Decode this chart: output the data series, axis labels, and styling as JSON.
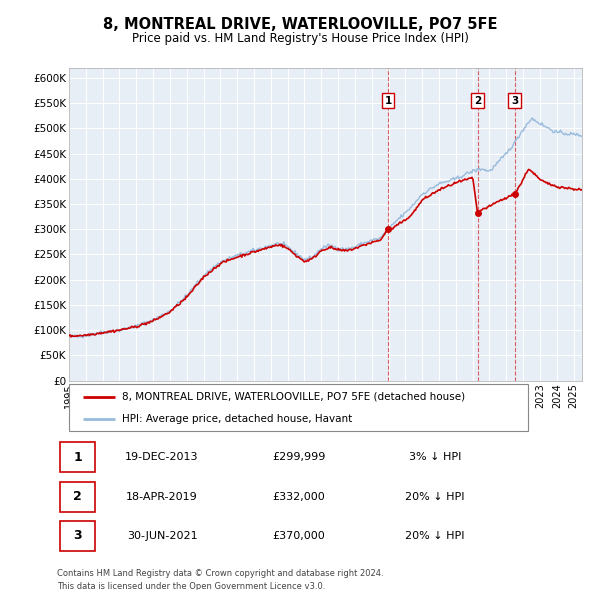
{
  "title": "8, MONTREAL DRIVE, WATERLOOVILLE, PO7 5FE",
  "subtitle": "Price paid vs. HM Land Registry's House Price Index (HPI)",
  "hpi_label": "HPI: Average price, detached house, Havant",
  "property_label": "8, MONTREAL DRIVE, WATERLOOVILLE, PO7 5FE (detached house)",
  "property_color": "#cc0000",
  "hpi_color": "#99bbdd",
  "plot_bg": "#e8eef5",
  "transactions": [
    {
      "num": 1,
      "date": "19-DEC-2013",
      "price": "£299,999",
      "pct": "3% ↓ HPI",
      "year_x": 2013.97
    },
    {
      "num": 2,
      "date": "18-APR-2019",
      "price": "£332,000",
      "pct": "20% ↓ HPI",
      "year_x": 2019.29
    },
    {
      "num": 3,
      "date": "30-JUN-2021",
      "price": "£370,000",
      "pct": "20% ↓ HPI",
      "year_x": 2021.5
    }
  ],
  "transaction_prices": [
    299999,
    332000,
    370000
  ],
  "footer_line1": "Contains HM Land Registry data © Crown copyright and database right 2024.",
  "footer_line2": "This data is licensed under the Open Government Licence v3.0.",
  "ylim": [
    0,
    620000
  ],
  "xlim_start": 1995.0,
  "xlim_end": 2025.5,
  "yticks": [
    0,
    50000,
    100000,
    150000,
    200000,
    250000,
    300000,
    350000,
    400000,
    450000,
    500000,
    550000,
    600000
  ],
  "ytick_labels": [
    "£0",
    "£50K",
    "£100K",
    "£150K",
    "£200K",
    "£250K",
    "£300K",
    "£350K",
    "£400K",
    "£450K",
    "£500K",
    "£550K",
    "£600K"
  ],
  "xticks": [
    1995,
    1996,
    1997,
    1998,
    1999,
    2000,
    2001,
    2002,
    2003,
    2004,
    2005,
    2006,
    2007,
    2008,
    2009,
    2010,
    2011,
    2012,
    2013,
    2014,
    2015,
    2016,
    2017,
    2018,
    2019,
    2020,
    2021,
    2022,
    2023,
    2024,
    2025
  ]
}
